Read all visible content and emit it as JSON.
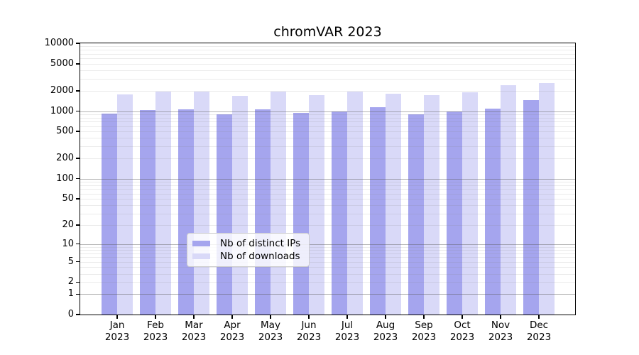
{
  "title": "chromVAR 2023",
  "chart_data": {
    "type": "bar",
    "title": "chromVAR 2023",
    "xlabel": "",
    "ylabel": "",
    "yscale": "log1p",
    "ylim": [
      0,
      10000
    ],
    "yticks": [
      10000,
      5000,
      2000,
      1000,
      500,
      200,
      100,
      50,
      20,
      10,
      5,
      2,
      1,
      0
    ],
    "grid": {
      "major_values": [
        1,
        10,
        100,
        1000
      ],
      "minor_multipliers": [
        2,
        3,
        4,
        5,
        6,
        7,
        8,
        9
      ]
    },
    "categories": [
      {
        "month": "Jan",
        "year": "2023"
      },
      {
        "month": "Feb",
        "year": "2023"
      },
      {
        "month": "Mar",
        "year": "2023"
      },
      {
        "month": "Apr",
        "year": "2023"
      },
      {
        "month": "May",
        "year": "2023"
      },
      {
        "month": "Jun",
        "year": "2023"
      },
      {
        "month": "Jul",
        "year": "2023"
      },
      {
        "month": "Aug",
        "year": "2023"
      },
      {
        "month": "Sep",
        "year": "2023"
      },
      {
        "month": "Oct",
        "year": "2023"
      },
      {
        "month": "Nov",
        "year": "2023"
      },
      {
        "month": "Dec",
        "year": "2023"
      }
    ],
    "series": [
      {
        "id": "distinct-ips",
        "name": "Nb of distinct IPs",
        "color": "#a5a5ee",
        "values": [
          920,
          1030,
          1050,
          890,
          1050,
          950,
          980,
          1150,
          900,
          980,
          1100,
          1440
        ]
      },
      {
        "id": "downloads",
        "name": "Nb of downloads",
        "color": "#d9d9f8",
        "values": [
          1780,
          1930,
          1960,
          1700,
          1950,
          1720,
          1920,
          1790,
          1710,
          1880,
          2400,
          2580
        ]
      }
    ],
    "legend_position": "lower center"
  },
  "colors": {
    "background": "#ffffff",
    "axis": "#000000",
    "bar_distinct_ips": "#a5a5ee",
    "bar_downloads": "#d9d9f8",
    "legend_border": "#cccccc"
  }
}
